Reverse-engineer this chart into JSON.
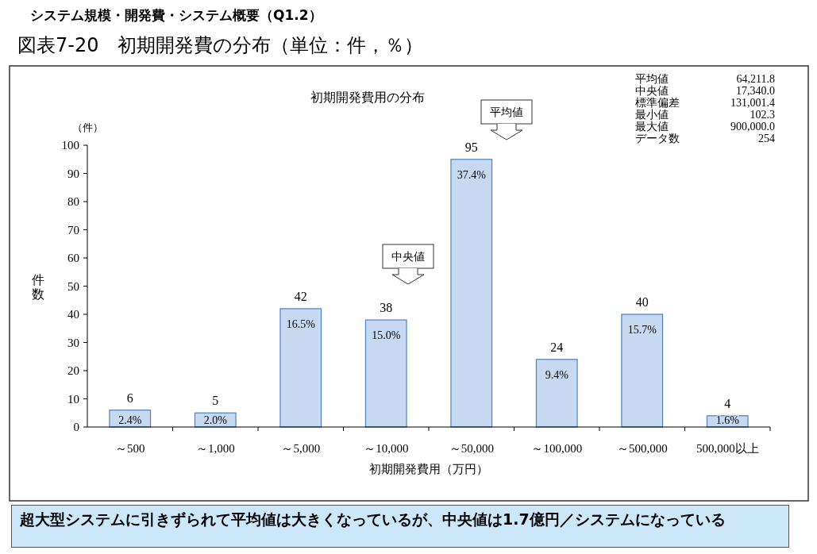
{
  "chart_data": {
    "type": "bar",
    "title": "図表7-20　初期開発費の分布（単位：件，％）",
    "subtitle": "システム規模・開発費・システム概要（Q1.2）",
    "xlabel": "初期開発費用（万円）",
    "ylabel": "件数",
    "categories": [
      "～500",
      "～1,000",
      "～5,000",
      "～10,000",
      "～50,000",
      "～100,000",
      "～500,000",
      "500,000以上"
    ],
    "values": [
      6,
      5,
      42,
      38,
      95,
      24,
      40,
      4
    ],
    "value_labels": [
      "6",
      "5",
      "42",
      "38",
      "95",
      "24",
      "40",
      "4"
    ],
    "color": "#c6d9f1",
    "ylim": [
      0,
      100
    ],
    "yticks": [
      0,
      10,
      20,
      30,
      40,
      50,
      60,
      70,
      80,
      90,
      100
    ],
    "grid": false,
    "annotations": [
      "初期開発費用の分布",
      "（件）",
      "平均値",
      "中央値",
      "平均値",
      "64,211.8",
      "中央値",
      "17,340.0",
      "標準偏差",
      "131,001.4",
      "最小値",
      "102.3",
      "最大値",
      "900,000.0",
      "データ数",
      "254",
      "超大型システムに引きずられて平均値は大きくなっているが、中央値は1.7億円／システムになっている",
      {
        "text": "2.4%",
        "x": "～500",
        "y": 6
      },
      {
        "text": "2.0%",
        "x": "～1,000",
        "y": 5
      },
      {
        "text": "16.5%",
        "x": "～5,000",
        "y": 42
      },
      {
        "text": "15.0%",
        "x": "～10,000",
        "y": 38
      },
      {
        "text": "37.4%",
        "x": "～50,000",
        "y": 95
      },
      {
        "text": "9.4%",
        "x": "～100,000",
        "y": 24
      },
      {
        "text": "15.7%",
        "x": "～500,000",
        "y": 40
      },
      {
        "text": "1.6%",
        "x": "500,000以上",
        "y": 4
      }
    ]
  }
}
